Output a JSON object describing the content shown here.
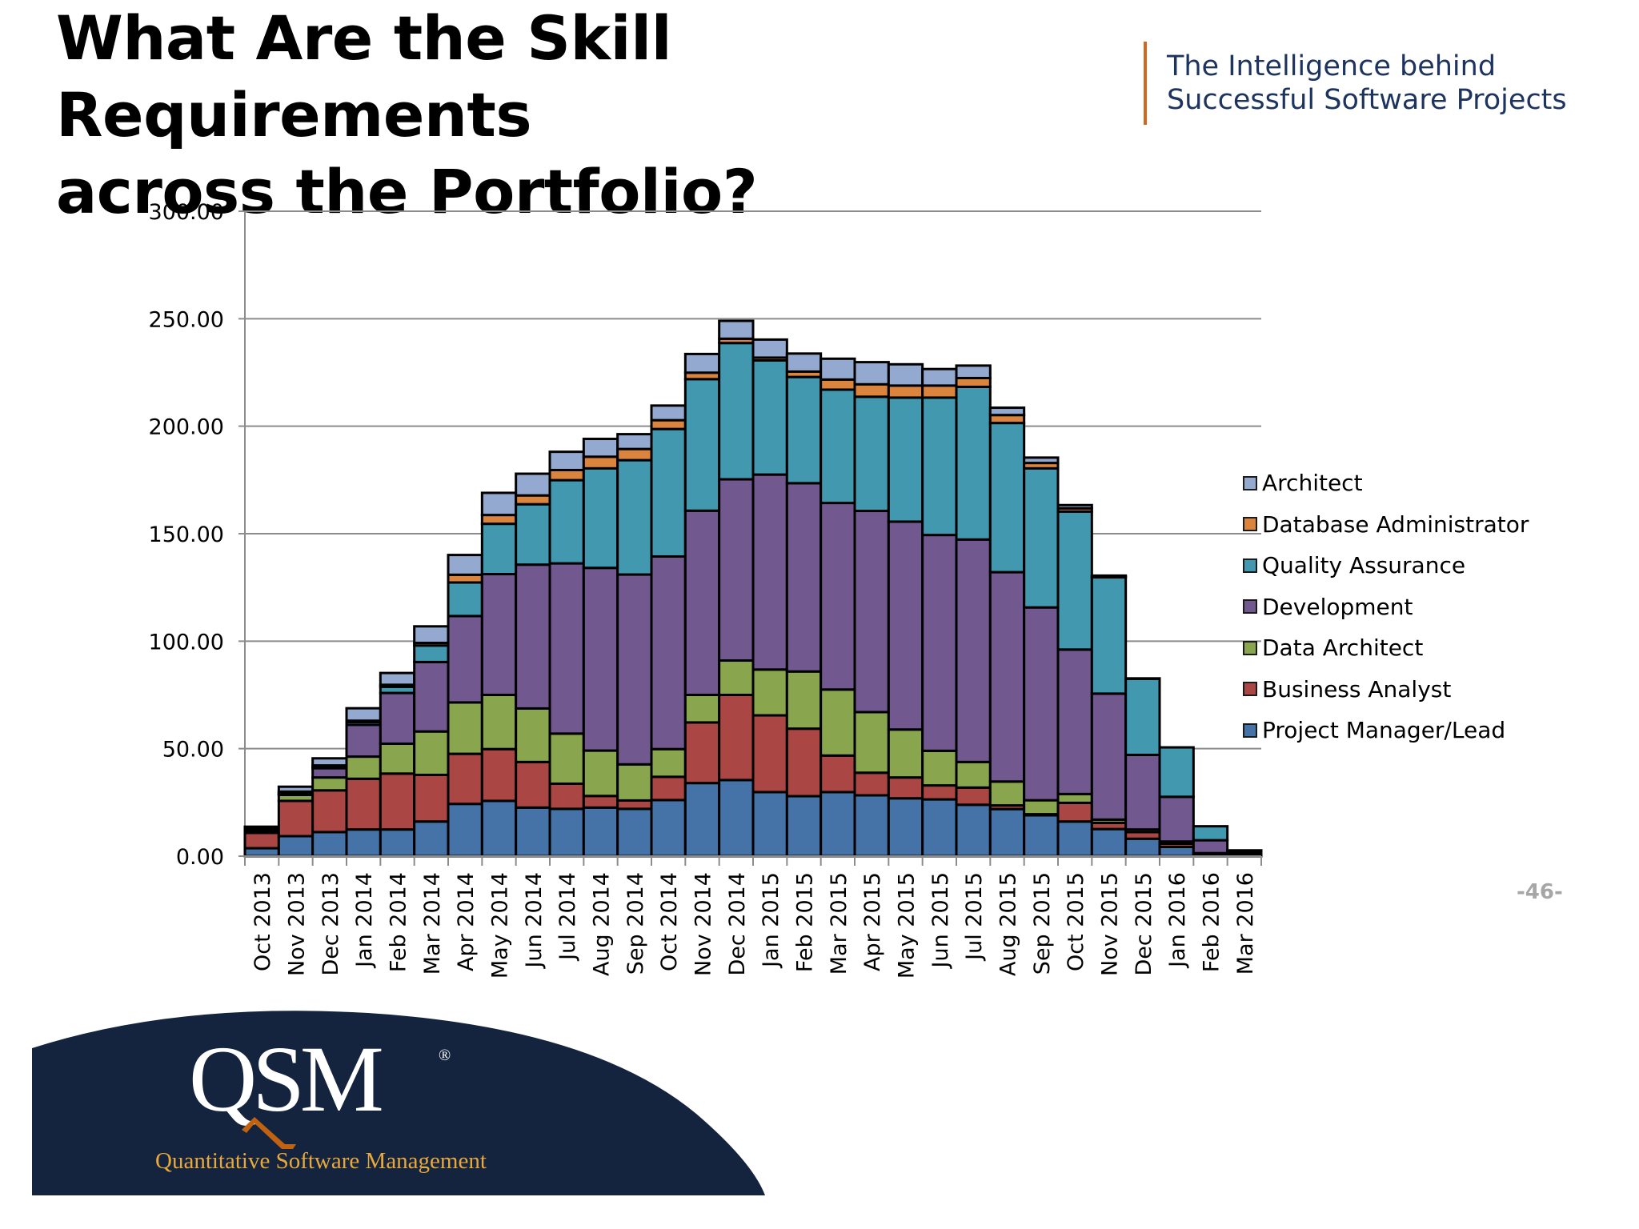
{
  "slide": {
    "title_line1": "What Are the Skill Requirements",
    "title_line2": "across the Portfolio?",
    "tagline_line1": "The Intelligence behind",
    "tagline_line2": "Successful Software Projects",
    "page_number": "-46-",
    "accent_color": "#d0691f",
    "tagline_color": "#1d3461"
  },
  "logo": {
    "mark": "QSM",
    "registered": "®",
    "subtitle": "Quantitative Software Management",
    "background_color": "#14243f",
    "subtitle_color": "#e8a83a"
  },
  "chart_data": {
    "type": "bar",
    "stacked": true,
    "title": "",
    "xlabel": "",
    "ylabel": "",
    "ylim": [
      0,
      300
    ],
    "yticks": [
      "0.00",
      "50.00",
      "100.00",
      "150.00",
      "200.00",
      "250.00",
      "300.00"
    ],
    "grid": true,
    "legend_position": "right",
    "categories": [
      "Oct 2013",
      "Nov 2013",
      "Dec 2013",
      "Jan 2014",
      "Feb 2014",
      "Mar 2014",
      "Apr 2014",
      "May 2014",
      "Jun 2014",
      "Jul 2014",
      "Aug 2014",
      "Sep 2014",
      "Oct 2014",
      "Nov 2014",
      "Dec 2014",
      "Jan 2015",
      "Feb 2015",
      "Mar 2015",
      "Apr 2015",
      "May 2015",
      "Jun 2015",
      "Jul 2015",
      "Aug 2015",
      "Sep 2015",
      "Oct 2015",
      "Nov 2015",
      "Dec 2015",
      "Jan 2016",
      "Feb 2016",
      "Mar 2016"
    ],
    "series": [
      {
        "name": "Project Manager/Lead",
        "color": "#4572a7",
        "values": [
          3.7,
          9.3,
          11.2,
          12.4,
          12.4,
          16.1,
          24.3,
          25.7,
          22.6,
          22.0,
          22.6,
          22.0,
          26.1,
          34.0,
          35.4,
          29.8,
          27.9,
          29.8,
          28.3,
          26.9,
          26.4,
          23.9,
          21.9,
          19.0,
          16.1,
          12.6,
          8.1,
          4.3,
          1.0,
          0.8
        ]
      },
      {
        "name": "Business Analyst",
        "color": "#aa4643",
        "values": [
          7.1,
          16.4,
          19.4,
          23.6,
          26.0,
          21.7,
          23.3,
          24.1,
          21.2,
          11.7,
          5.4,
          3.9,
          10.8,
          28.2,
          39.6,
          35.7,
          31.4,
          17.0,
          10.5,
          9.7,
          6.5,
          8.0,
          1.7,
          0.5,
          8.7,
          2.9,
          3.1,
          1.5,
          0.2,
          0.2
        ]
      },
      {
        "name": "Data Architect",
        "color": "#89a54e",
        "values": [
          1.0,
          2.8,
          6.0,
          10.3,
          13.9,
          20.2,
          23.9,
          25.2,
          24.9,
          23.3,
          21.1,
          16.8,
          12.9,
          12.8,
          16.0,
          21.3,
          26.6,
          30.7,
          28.2,
          22.3,
          16.1,
          11.9,
          11.1,
          6.5,
          4.1,
          1.5,
          1.2,
          1.0,
          0.2,
          0.2
        ]
      },
      {
        "name": "Development",
        "color": "#71588f",
        "values": [
          0.5,
          0.3,
          4.3,
          14.8,
          23.6,
          32.3,
          40.2,
          56.2,
          66.9,
          79.2,
          85.0,
          88.3,
          89.6,
          85.7,
          84.3,
          90.7,
          87.6,
          86.8,
          93.6,
          96.7,
          100.4,
          103.5,
          97.4,
          89.7,
          67.2,
          58.6,
          34.7,
          20.8,
          6.0,
          0.6
        ]
      },
      {
        "name": "Quality Assurance",
        "color": "#4198af",
        "values": [
          0.2,
          0.2,
          0.3,
          1.3,
          2.9,
          7.7,
          15.6,
          23.4,
          28.1,
          38.7,
          46.3,
          53.2,
          59.3,
          61.2,
          63.4,
          53.1,
          49.4,
          52.7,
          53.1,
          57.7,
          63.9,
          71.0,
          69.4,
          64.7,
          64.2,
          54.1,
          35.4,
          23.0,
          6.5,
          0.7
        ]
      },
      {
        "name": "Database Administrator",
        "color": "#db843d",
        "values": [
          0.3,
          1.0,
          1.0,
          0.6,
          0.9,
          1.2,
          3.6,
          4.1,
          4.1,
          4.7,
          5.4,
          5.2,
          4.1,
          3.0,
          2.0,
          1.3,
          2.5,
          4.7,
          5.8,
          5.6,
          5.6,
          4.1,
          3.7,
          2.5,
          1.5,
          0.4,
          0.1,
          0.0,
          0.0,
          0.1
        ]
      },
      {
        "name": "Architect",
        "color": "#93a9cf",
        "values": [
          0.9,
          2.3,
          3.3,
          5.8,
          5.5,
          7.7,
          9.2,
          10.3,
          10.1,
          8.5,
          8.3,
          6.9,
          6.8,
          8.7,
          8.3,
          8.4,
          8.4,
          9.7,
          10.3,
          9.9,
          7.7,
          5.8,
          3.4,
          2.5,
          1.5,
          0.4,
          0.1,
          0.0,
          0.0,
          0.1
        ]
      }
    ],
    "legend": [
      "Architect",
      "Database Administrator",
      "Quality Assurance",
      "Development",
      "Data Architect",
      "Business Analyst",
      "Project Manager/Lead"
    ]
  }
}
